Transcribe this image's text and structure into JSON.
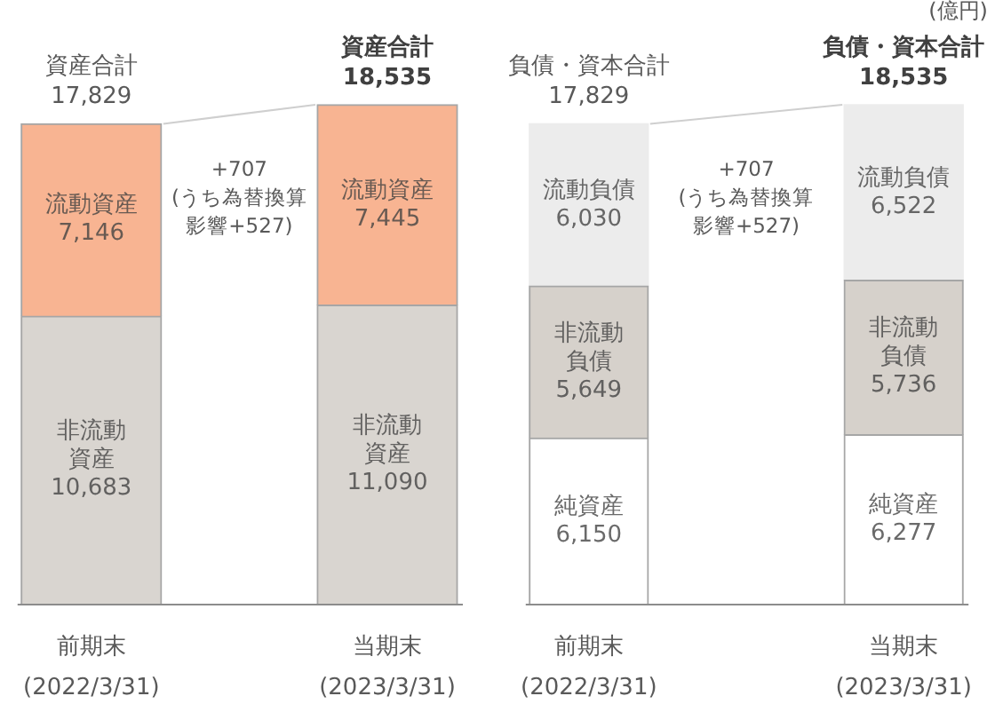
{
  "chart_data": [
    {
      "type": "bar",
      "stacked": true,
      "categories": [
        "前期末\n(2022/3/31)",
        "当期末\n(2023/3/31)"
      ],
      "series": [
        {
          "name": "非流動資産",
          "color": "#d9d5d0",
          "values": [
            10683,
            11090
          ],
          "value_labels": [
            "10,683",
            "11,090"
          ]
        },
        {
          "name": "流動資産",
          "color": "#f8b492",
          "values": [
            7146,
            7445
          ],
          "value_labels": [
            "7,146",
            "7,445"
          ]
        }
      ],
      "totals": [
        "17,829",
        "18,535"
      ],
      "annotations": [
        {
          "text": "資産合計",
          "x": "前期末\n(2022/3/31)",
          "y": 17829
        },
        {
          "text": "資産合計",
          "x": "当期末\n(2023/3/31)",
          "y": 18535
        },
        "+707\n(うち為替換算影響+527)"
      ]
    },
    {
      "type": "bar",
      "stacked": true,
      "ylabel": "(億円)",
      "categories": [
        "前期末\n(2022/3/31)",
        "当期末\n(2023/3/31)"
      ],
      "series": [
        {
          "name": "純資産",
          "color": "#ffffff",
          "values": [
            6150,
            6277
          ],
          "value_labels": [
            "6,150",
            "6,277"
          ]
        },
        {
          "name": "非流動負債",
          "color": "#d6d1cb",
          "values": [
            5649,
            5736
          ],
          "value_labels": [
            "5,649",
            "5,736"
          ]
        },
        {
          "name": "流動負債",
          "color": "#ececec",
          "values": [
            6030,
            6522
          ],
          "value_labels": [
            "6,030",
            "6,522"
          ]
        }
      ],
      "totals": [
        "17,829",
        "18,535"
      ],
      "annotations": [
        {
          "text": "負債・資本合計",
          "x": "前期末\n(2022/3/31)",
          "y": 17829
        },
        {
          "text": "負債・資本合計",
          "x": "当期末\n(2023/3/31)",
          "y": 18535
        },
        "+707\n(うち為替換算影響+527)"
      ]
    }
  ]
}
